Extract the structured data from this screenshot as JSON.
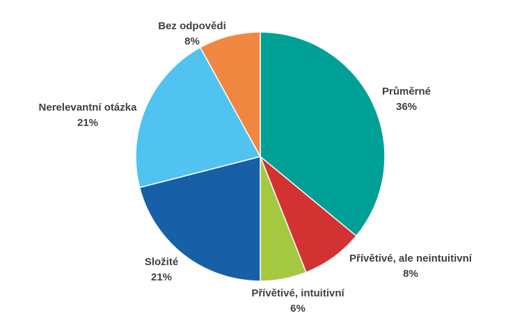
{
  "chart_data": {
    "type": "pie",
    "title": "",
    "start_angle_deg": 0,
    "direction": "clockwise",
    "legend": "none",
    "slices": [
      {
        "label": "Průměrné",
        "value": 36,
        "value_label": "36%",
        "color": "#00A096"
      },
      {
        "label": "Přívětivé, ale neintuitivní",
        "value": 8,
        "value_label": "8%",
        "color": "#D23232"
      },
      {
        "label": "Přívětivé, intuitivní",
        "value": 6,
        "value_label": "6%",
        "color": "#A5C841"
      },
      {
        "label": "Složité",
        "value": 21,
        "value_label": "21%",
        "color": "#1760A8"
      },
      {
        "label": "Nerelevantní otázka",
        "value": 21,
        "value_label": "21%",
        "color": "#50C3F0"
      },
      {
        "label": "Bez odpovědi",
        "value": 8,
        "value_label": "8%",
        "color": "#F08741"
      }
    ]
  }
}
